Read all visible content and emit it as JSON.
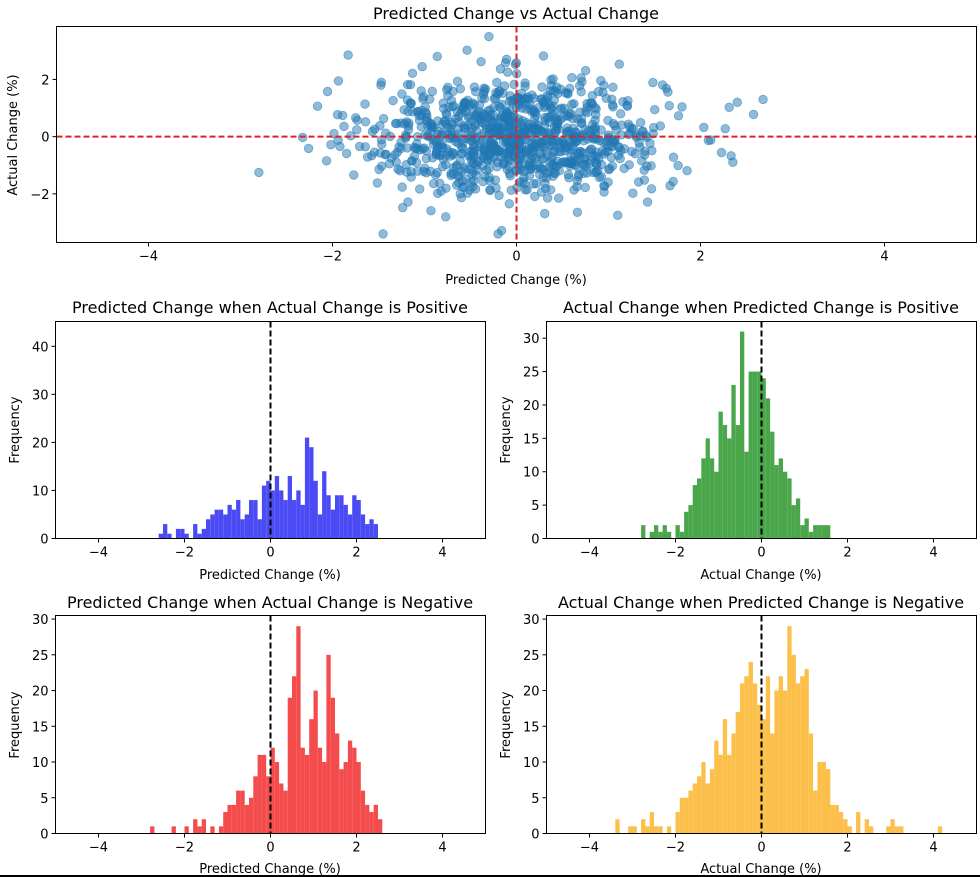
{
  "chart_data": [
    {
      "id": "scatter",
      "type": "scatter",
      "title": "Predicted Change vs Actual Change",
      "xlabel": "Predicted Change (%)",
      "ylabel": "Actual Change (%)",
      "xlim": [
        -5.0,
        5.0
      ],
      "ylim": [
        -3.7,
        3.85
      ],
      "xticks": [
        -4,
        -2,
        0,
        2,
        4
      ],
      "xtick_labels": [
        "−4",
        "−2",
        "0",
        "2",
        "4"
      ],
      "yticks": [
        -2,
        0,
        2
      ],
      "ytick_labels": [
        "−2",
        "0",
        "2"
      ],
      "point_color": "#1f77b4",
      "reference_lines": {
        "x": 0,
        "y": 0,
        "color": "#d62728",
        "style": "dashed"
      },
      "n_points": 1000,
      "x_stats": {
        "mean": 0.0,
        "std": 0.8,
        "min": -2.8,
        "max": 2.7
      },
      "y_stats": {
        "mean": 0.0,
        "std": 1.0,
        "min": -3.4,
        "max": 3.5
      },
      "notable_points": [
        [
          -0.3,
          3.5
        ],
        [
          -1.83,
          2.85
        ],
        [
          -1.45,
          -3.4
        ],
        [
          -0.2,
          -3.4
        ],
        [
          2.68,
          1.3
        ],
        [
          -2.8,
          -1.25
        ],
        [
          2.4,
          1.2
        ],
        [
          1.1,
          -2.75
        ]
      ]
    },
    {
      "id": "hist-pred-pos",
      "type": "bar",
      "subtype": "histogram",
      "title": "Predicted Change when Actual Change is Positive",
      "xlabel": "Predicted Change (%)",
      "ylabel": "Frequency",
      "xlim": [
        -5.0,
        5.0
      ],
      "ylim": [
        0,
        45.15
      ],
      "xticks": [
        -4,
        -2,
        0,
        2,
        4
      ],
      "xtick_labels": [
        "−4",
        "−2",
        "0",
        "2",
        "4"
      ],
      "yticks": [
        0,
        10,
        20,
        30,
        40
      ],
      "ytick_labels": [
        "0",
        "10",
        "20",
        "30",
        "40"
      ],
      "bar_color": "#4b4bf5",
      "vline": {
        "x": 0,
        "color": "#000000",
        "style": "dashed"
      },
      "bin_start": -2.6,
      "bin_width": 0.1,
      "counts": [
        1,
        3,
        1,
        0,
        2,
        2,
        1,
        0,
        3,
        1,
        2,
        4,
        5,
        6,
        6,
        5,
        7,
        6,
        8,
        4,
        5,
        8,
        8,
        4,
        11,
        12,
        10,
        13,
        10,
        8,
        13,
        8,
        10,
        7,
        21,
        19,
        12,
        5,
        14,
        9,
        6,
        9,
        9,
        7,
        5,
        9,
        8,
        5,
        3,
        4,
        3,
        0
      ]
    },
    {
      "id": "hist-actual-pos",
      "type": "bar",
      "subtype": "histogram",
      "title": "Actual Change when Predicted Change is Positive",
      "xlabel": "Actual Change (%)",
      "ylabel": "Frequency",
      "xlim": [
        -5.0,
        5.0
      ],
      "ylim": [
        0,
        32.5
      ],
      "xticks": [
        -4,
        -2,
        0,
        2,
        4
      ],
      "xtick_labels": [
        "−4",
        "−2",
        "0",
        "2",
        "4"
      ],
      "yticks": [
        0,
        5,
        10,
        15,
        20,
        25,
        30
      ],
      "ytick_labels": [
        "0",
        "5",
        "10",
        "15",
        "20",
        "25",
        "30"
      ],
      "bar_color": "#4aa64a",
      "vline": {
        "x": 0,
        "color": "#000000",
        "style": "dashed"
      },
      "bin_start": -2.8,
      "bin_width": 0.1,
      "counts": [
        2,
        0,
        1,
        2,
        1,
        2,
        1,
        0,
        2,
        1,
        4,
        5,
        8,
        9,
        12,
        15,
        12,
        10,
        19,
        17,
        15,
        23,
        17,
        31,
        13,
        25,
        25,
        25,
        24,
        21,
        16,
        11,
        12,
        10,
        9,
        5,
        6,
        2,
        3,
        1,
        2,
        2,
        2,
        2,
        0,
        0,
        0,
        0,
        0,
        0
      ]
    },
    {
      "id": "hist-pred-neg",
      "type": "bar",
      "subtype": "histogram",
      "title": "Predicted Change when Actual Change is Negative",
      "xlabel": "Predicted Change (%)",
      "ylabel": "Frequency",
      "xlim": [
        -5.0,
        5.0
      ],
      "ylim": [
        0,
        30.5
      ],
      "xticks": [
        -4,
        -2,
        0,
        2,
        4
      ],
      "xtick_labels": [
        "−4",
        "−2",
        "0",
        "2",
        "4"
      ],
      "yticks": [
        0,
        5,
        10,
        15,
        20,
        25,
        30
      ],
      "ytick_labels": [
        "0",
        "5",
        "10",
        "15",
        "20",
        "25",
        "30"
      ],
      "bar_color": "#f44c4c",
      "vline": {
        "x": 0,
        "color": "#000000",
        "style": "dashed"
      },
      "bin_start": -2.8,
      "bin_width": 0.1,
      "counts": [
        1,
        0,
        0,
        0,
        0,
        1,
        0,
        0,
        1,
        0,
        2,
        1,
        2,
        0,
        1,
        0,
        1,
        3,
        4,
        4,
        6,
        6,
        4,
        5,
        8,
        11,
        11,
        8,
        12,
        10,
        7,
        6,
        19,
        22,
        29,
        12,
        11,
        16,
        20,
        12,
        10,
        25,
        19,
        14,
        9,
        10,
        13,
        12,
        10,
        6,
        4,
        3,
        4,
        2,
        0,
        0,
        0,
        0,
        0,
        0
      ]
    },
    {
      "id": "hist-actual-neg",
      "type": "bar",
      "subtype": "histogram",
      "title": "Actual Change when Predicted Change is Negative",
      "xlabel": "Actual Change (%)",
      "ylabel": "Frequency",
      "xlim": [
        -5.0,
        5.0
      ],
      "ylim": [
        0,
        30.5
      ],
      "xticks": [
        -4,
        -2,
        0,
        2,
        4
      ],
      "xtick_labels": [
        "−4",
        "−2",
        "0",
        "2",
        "4"
      ],
      "yticks": [
        0,
        5,
        10,
        15,
        20,
        25,
        30
      ],
      "ytick_labels": [
        "0",
        "5",
        "10",
        "15",
        "20",
        "25",
        "30"
      ],
      "bar_color": "#fcbf4a",
      "vline": {
        "x": 0,
        "color": "#000000",
        "style": "dashed"
      },
      "bin_start": -3.4,
      "bin_width": 0.1,
      "counts": [
        2,
        0,
        0,
        1,
        1,
        0,
        2,
        1,
        3,
        1,
        1,
        0,
        1,
        0,
        3,
        5,
        5,
        6,
        7,
        8,
        10,
        7,
        9,
        13,
        11,
        16,
        11,
        14,
        17,
        21,
        22,
        24,
        21,
        18,
        16,
        22,
        14,
        20,
        22,
        20,
        29,
        25,
        21,
        22,
        23,
        14,
        6,
        10,
        10,
        9,
        4,
        4,
        3,
        2,
        1,
        0,
        3,
        0,
        2,
        1,
        0,
        0,
        0,
        1,
        2,
        1,
        1,
        0,
        0,
        0,
        0,
        0,
        0,
        0,
        0,
        1,
        0,
        0,
        0,
        0
      ]
    }
  ]
}
